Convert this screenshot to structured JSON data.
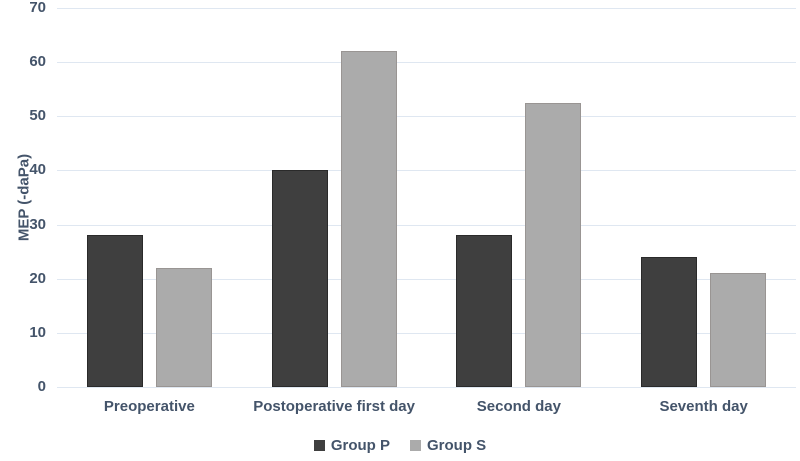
{
  "chart_data": {
    "type": "bar",
    "categories": [
      "Preoperative",
      "Postoperative first day",
      "Second day",
      "Seventh day"
    ],
    "series": [
      {
        "name": "Group P",
        "color": "#3f3f3f",
        "border_color": "#2a2a2a",
        "values": [
          28,
          40,
          28,
          24
        ]
      },
      {
        "name": "Group S",
        "color": "#ababab",
        "border_color": "#999593",
        "values": [
          22,
          62,
          52.5,
          21
        ]
      }
    ],
    "title": "",
    "xlabel": "",
    "ylabel": "MEP (-daPa)",
    "ylim": [
      0,
      70
    ],
    "ytick_step": 10,
    "grid": true,
    "legend_position": "bottom"
  },
  "colors": {
    "text": "#44546a",
    "gridline": "#dfe7f1",
    "background": "#ffffff"
  }
}
